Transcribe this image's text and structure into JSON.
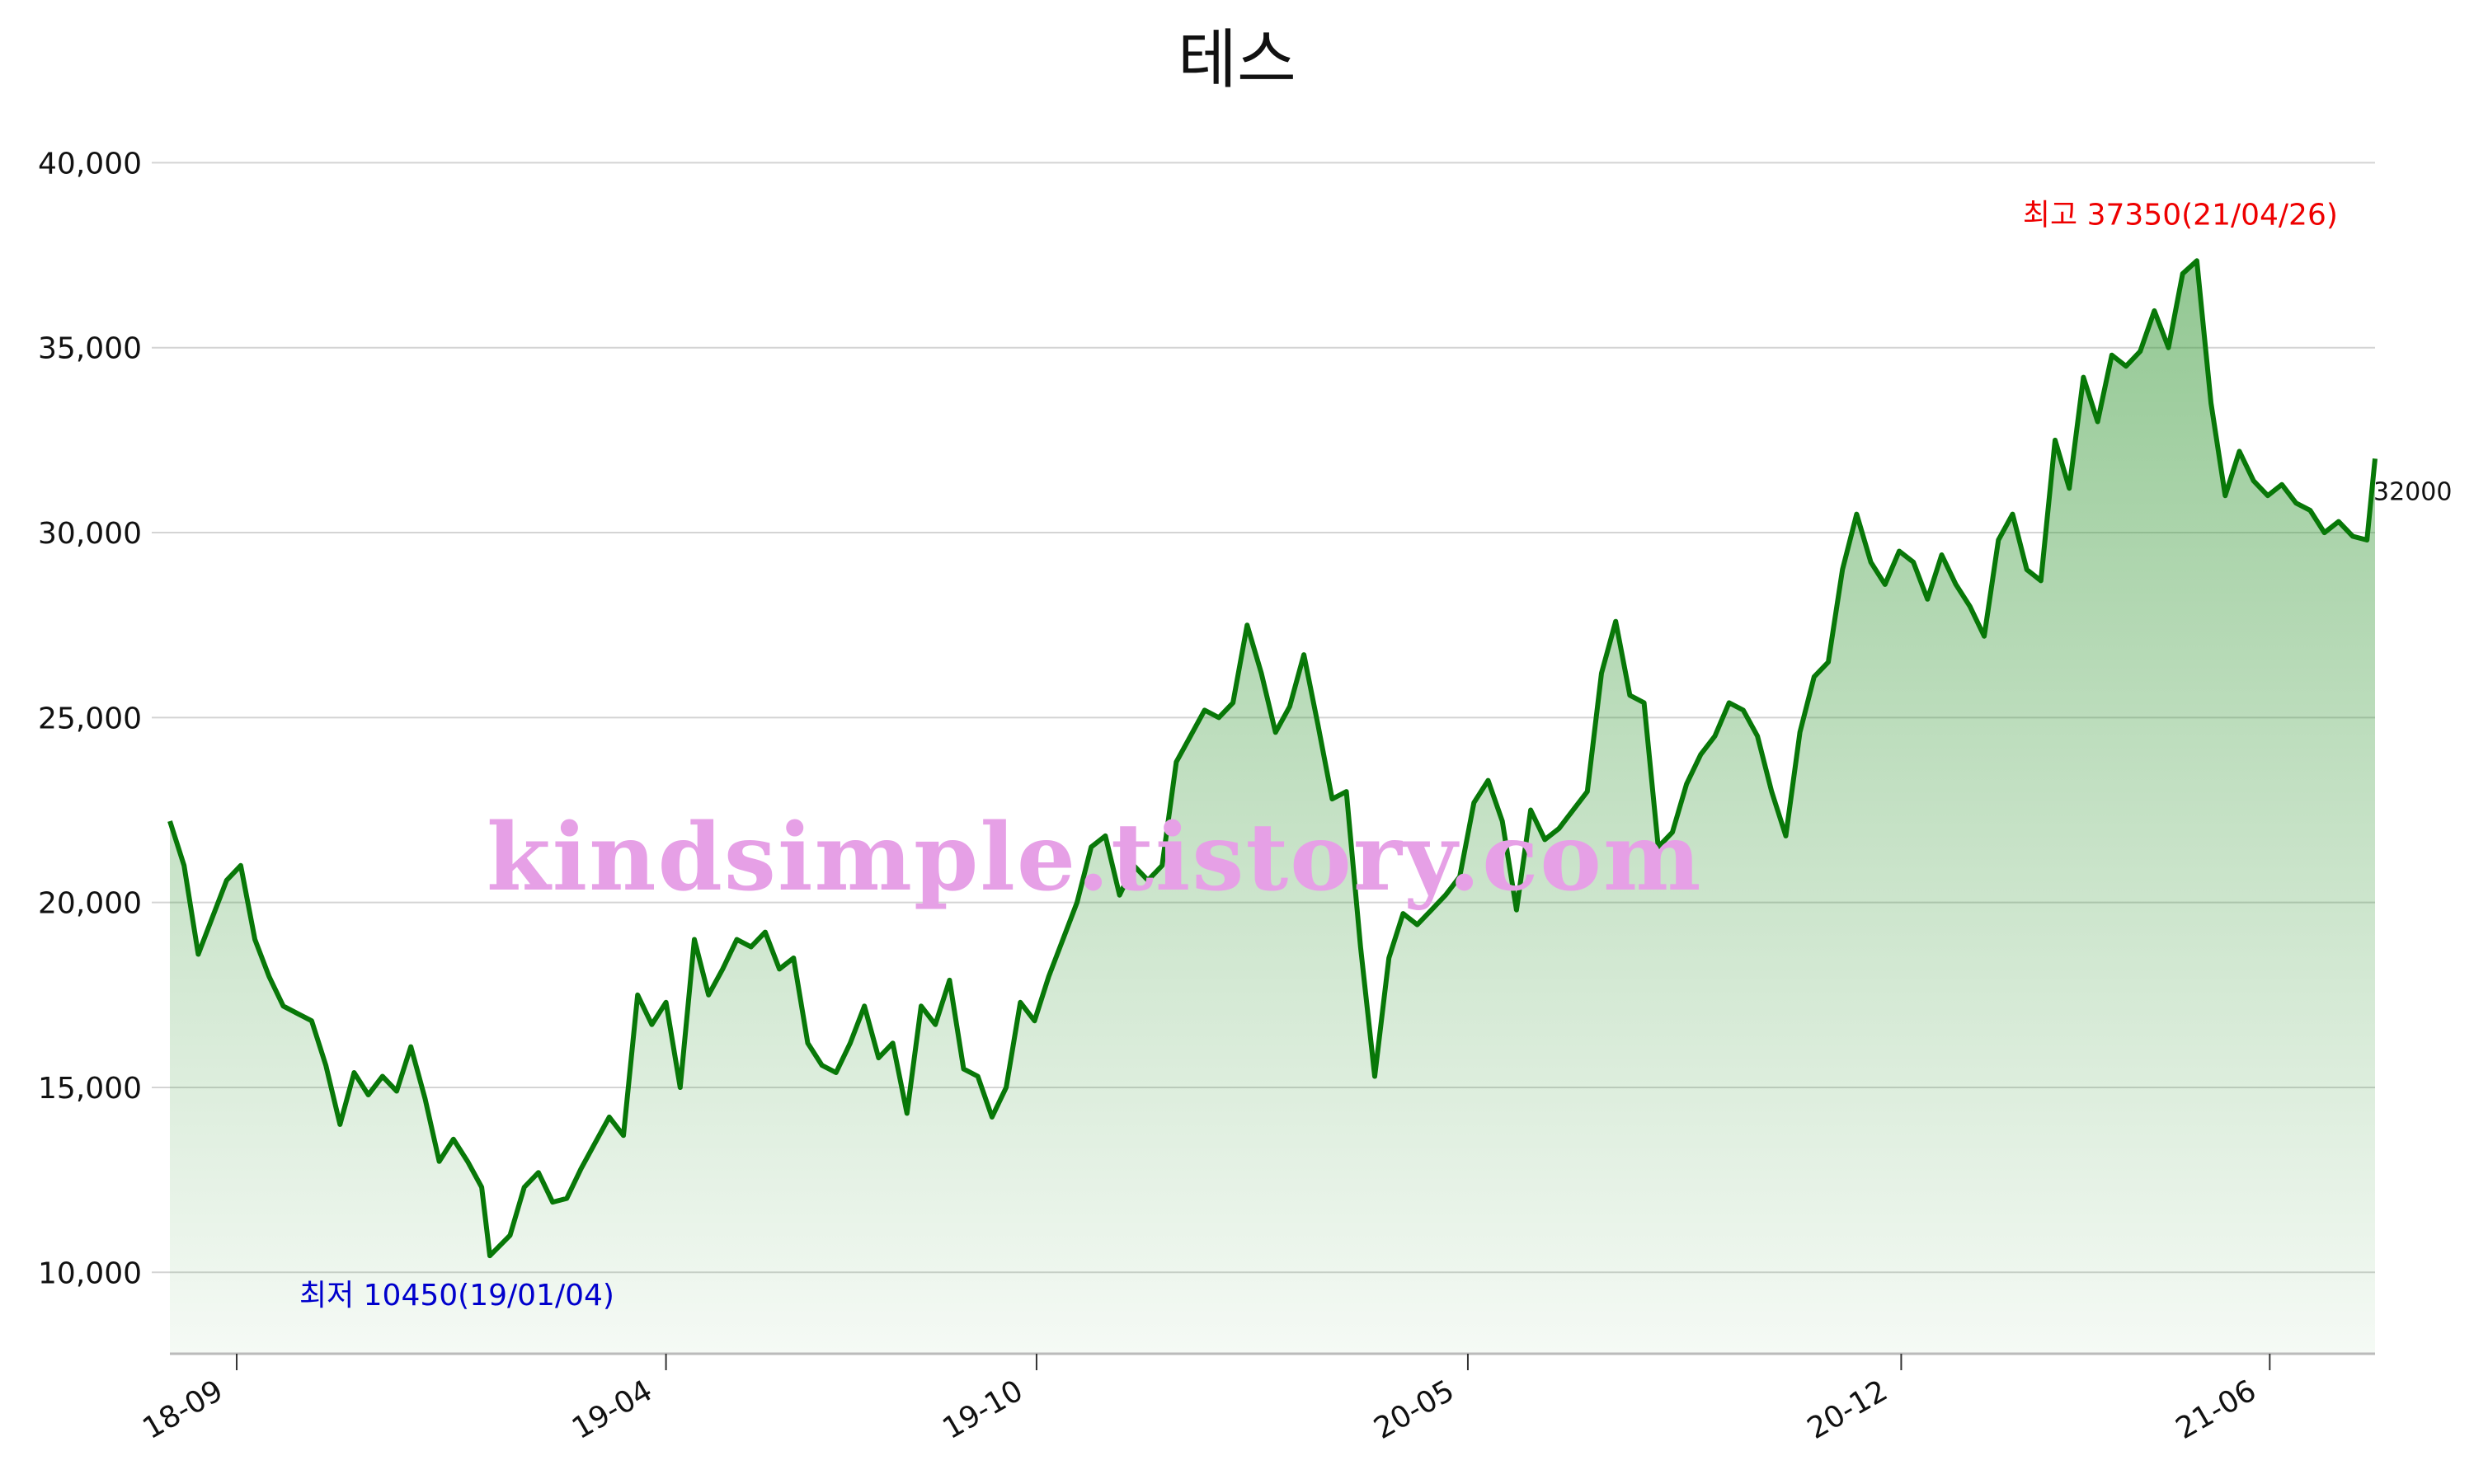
{
  "chart_data": {
    "type": "area",
    "title": "테스",
    "xlabel": "",
    "ylabel": "",
    "x_start": "2018-07-30",
    "x_end": "2021-07-23",
    "ylim": [
      7800,
      40500
    ],
    "y_ticks": [
      10000,
      15000,
      20000,
      25000,
      30000,
      35000,
      40000
    ],
    "y_tick_labels": [
      "10,000",
      "15,000",
      "20,000",
      "25,000",
      "30,000",
      "35,000",
      "40,000"
    ],
    "x_ticks": [
      "2018-09-01",
      "2019-04-01",
      "2019-10-01",
      "2020-05-01",
      "2020-12-01",
      "2021-06-01"
    ],
    "x_tick_labels": [
      "18-09",
      "19-04",
      "19-10",
      "20-05",
      "20-12",
      "21-06"
    ],
    "grid": "horizontal",
    "line_color": "#087808",
    "fill_color": "#3a9a3a",
    "series": [
      {
        "name": "",
        "points": [
          [
            "2018-07-30",
            22200
          ],
          [
            "2018-08-06",
            21000
          ],
          [
            "2018-08-13",
            18600
          ],
          [
            "2018-08-20",
            19600
          ],
          [
            "2018-08-27",
            20600
          ],
          [
            "2018-09-03",
            21000
          ],
          [
            "2018-09-10",
            19000
          ],
          [
            "2018-09-17",
            18000
          ],
          [
            "2018-09-24",
            17200
          ],
          [
            "2018-10-01",
            17000
          ],
          [
            "2018-10-08",
            16800
          ],
          [
            "2018-10-15",
            15600
          ],
          [
            "2018-10-22",
            14000
          ],
          [
            "2018-10-29",
            15400
          ],
          [
            "2018-11-05",
            14800
          ],
          [
            "2018-11-12",
            15300
          ],
          [
            "2018-11-19",
            14900
          ],
          [
            "2018-11-26",
            16100
          ],
          [
            "2018-12-03",
            14700
          ],
          [
            "2018-12-10",
            13000
          ],
          [
            "2018-12-17",
            13600
          ],
          [
            "2018-12-24",
            13000
          ],
          [
            "2018-12-31",
            12300
          ],
          [
            "2019-01-04",
            10450
          ],
          [
            "2019-01-14",
            11000
          ],
          [
            "2019-01-21",
            12300
          ],
          [
            "2019-01-28",
            12700
          ],
          [
            "2019-02-04",
            11900
          ],
          [
            "2019-02-11",
            12000
          ],
          [
            "2019-02-18",
            12800
          ],
          [
            "2019-02-25",
            13500
          ],
          [
            "2019-03-04",
            14200
          ],
          [
            "2019-03-11",
            13700
          ],
          [
            "2019-03-18",
            17500
          ],
          [
            "2019-03-25",
            16700
          ],
          [
            "2019-04-01",
            17300
          ],
          [
            "2019-04-08",
            15000
          ],
          [
            "2019-04-15",
            19000
          ],
          [
            "2019-04-22",
            17500
          ],
          [
            "2019-04-29",
            18200
          ],
          [
            "2019-05-06",
            19000
          ],
          [
            "2019-05-13",
            18800
          ],
          [
            "2019-05-20",
            19200
          ],
          [
            "2019-05-27",
            18200
          ],
          [
            "2019-06-03",
            18500
          ],
          [
            "2019-06-10",
            16200
          ],
          [
            "2019-06-17",
            15600
          ],
          [
            "2019-06-24",
            15400
          ],
          [
            "2019-07-01",
            16200
          ],
          [
            "2019-07-08",
            17200
          ],
          [
            "2019-07-15",
            15800
          ],
          [
            "2019-07-22",
            16200
          ],
          [
            "2019-07-29",
            14300
          ],
          [
            "2019-08-05",
            17200
          ],
          [
            "2019-08-12",
            16700
          ],
          [
            "2019-08-19",
            17900
          ],
          [
            "2019-08-26",
            15500
          ],
          [
            "2019-09-02",
            15300
          ],
          [
            "2019-09-09",
            14200
          ],
          [
            "2019-09-16",
            15000
          ],
          [
            "2019-09-23",
            17300
          ],
          [
            "2019-09-30",
            16800
          ],
          [
            "2019-10-07",
            18000
          ],
          [
            "2019-10-14",
            19000
          ],
          [
            "2019-10-21",
            20000
          ],
          [
            "2019-10-28",
            21500
          ],
          [
            "2019-11-04",
            21800
          ],
          [
            "2019-11-11",
            20200
          ],
          [
            "2019-11-18",
            21000
          ],
          [
            "2019-11-25",
            20600
          ],
          [
            "2019-12-02",
            21000
          ],
          [
            "2019-12-09",
            23800
          ],
          [
            "2019-12-16",
            24500
          ],
          [
            "2019-12-23",
            25200
          ],
          [
            "2019-12-30",
            25000
          ],
          [
            "2020-01-06",
            25400
          ],
          [
            "2020-01-13",
            27500
          ],
          [
            "2020-01-20",
            26200
          ],
          [
            "2020-01-27",
            24600
          ],
          [
            "2020-02-03",
            25300
          ],
          [
            "2020-02-10",
            26700
          ],
          [
            "2020-02-17",
            24800
          ],
          [
            "2020-02-24",
            22800
          ],
          [
            "2020-03-02",
            23000
          ],
          [
            "2020-03-09",
            18800
          ],
          [
            "2020-03-16",
            15300
          ],
          [
            "2020-03-23",
            18500
          ],
          [
            "2020-03-30",
            19700
          ],
          [
            "2020-04-06",
            19400
          ],
          [
            "2020-04-13",
            19800
          ],
          [
            "2020-04-20",
            20200
          ],
          [
            "2020-04-27",
            20700
          ],
          [
            "2020-05-04",
            22700
          ],
          [
            "2020-05-11",
            23300
          ],
          [
            "2020-05-18",
            22200
          ],
          [
            "2020-05-25",
            19800
          ],
          [
            "2020-06-01",
            22500
          ],
          [
            "2020-06-08",
            21700
          ],
          [
            "2020-06-15",
            22000
          ],
          [
            "2020-06-22",
            22500
          ],
          [
            "2020-06-29",
            23000
          ],
          [
            "2020-07-06",
            26200
          ],
          [
            "2020-07-13",
            27600
          ],
          [
            "2020-07-20",
            25600
          ],
          [
            "2020-07-27",
            25400
          ],
          [
            "2020-08-03",
            21500
          ],
          [
            "2020-08-10",
            21900
          ],
          [
            "2020-08-17",
            23200
          ],
          [
            "2020-08-24",
            24000
          ],
          [
            "2020-08-31",
            24500
          ],
          [
            "2020-09-07",
            25400
          ],
          [
            "2020-09-14",
            25200
          ],
          [
            "2020-09-21",
            24500
          ],
          [
            "2020-09-28",
            23000
          ],
          [
            "2020-10-05",
            21800
          ],
          [
            "2020-10-12",
            24600
          ],
          [
            "2020-10-19",
            26100
          ],
          [
            "2020-10-26",
            26500
          ],
          [
            "2020-11-02",
            29000
          ],
          [
            "2020-11-09",
            30500
          ],
          [
            "2020-11-16",
            29200
          ],
          [
            "2020-11-23",
            28600
          ],
          [
            "2020-11-30",
            29500
          ],
          [
            "2020-12-07",
            29200
          ],
          [
            "2020-12-14",
            28200
          ],
          [
            "2020-12-21",
            29400
          ],
          [
            "2020-12-28",
            28600
          ],
          [
            "2021-01-04",
            28000
          ],
          [
            "2021-01-11",
            27200
          ],
          [
            "2021-01-18",
            29800
          ],
          [
            "2021-01-25",
            30500
          ],
          [
            "2021-02-01",
            29000
          ],
          [
            "2021-02-08",
            28700
          ],
          [
            "2021-02-15",
            32500
          ],
          [
            "2021-02-22",
            31200
          ],
          [
            "2021-03-01",
            34200
          ],
          [
            "2021-03-08",
            33000
          ],
          [
            "2021-03-15",
            34800
          ],
          [
            "2021-03-22",
            34500
          ],
          [
            "2021-03-29",
            34900
          ],
          [
            "2021-04-05",
            36000
          ],
          [
            "2021-04-12",
            35000
          ],
          [
            "2021-04-19",
            37000
          ],
          [
            "2021-04-26",
            37350
          ],
          [
            "2021-05-03",
            33500
          ],
          [
            "2021-05-10",
            31000
          ],
          [
            "2021-05-17",
            32200
          ],
          [
            "2021-05-24",
            31400
          ],
          [
            "2021-05-31",
            31000
          ],
          [
            "2021-06-07",
            31300
          ],
          [
            "2021-06-14",
            30800
          ],
          [
            "2021-06-21",
            30600
          ],
          [
            "2021-06-28",
            30000
          ],
          [
            "2021-07-05",
            30300
          ],
          [
            "2021-07-12",
            29900
          ],
          [
            "2021-07-19",
            29800
          ],
          [
            "2021-07-23",
            32000
          ]
        ]
      }
    ],
    "annotations": [
      {
        "label": "최고 37350(21/04/26)",
        "x": "2021-04-26",
        "y": 37350,
        "color": "#ee0000"
      },
      {
        "label": "최저 10450(19/01/04)",
        "x": "2019-01-04",
        "y": 10450,
        "color": "#0000cc"
      },
      {
        "label": "32000",
        "x": "2021-07-23",
        "y": 32000,
        "color": "#111111"
      }
    ]
  },
  "watermark": "kindsimple.tistory.com"
}
